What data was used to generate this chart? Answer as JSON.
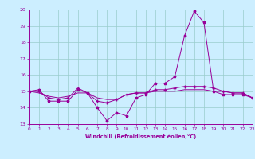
{
  "x": [
    0,
    1,
    2,
    3,
    4,
    5,
    6,
    7,
    8,
    9,
    10,
    11,
    12,
    13,
    14,
    15,
    16,
    17,
    18,
    19,
    20,
    21,
    22,
    23
  ],
  "line1": [
    15.0,
    15.1,
    14.4,
    14.4,
    14.4,
    15.1,
    14.9,
    14.0,
    13.2,
    13.7,
    13.5,
    14.6,
    14.8,
    15.5,
    15.5,
    15.9,
    18.4,
    19.9,
    19.2,
    15.0,
    14.8,
    14.8,
    14.8,
    14.6
  ],
  "line2": [
    15.0,
    15.0,
    14.6,
    14.5,
    14.6,
    15.2,
    14.9,
    14.4,
    14.3,
    14.5,
    14.8,
    14.9,
    14.9,
    15.1,
    15.1,
    15.2,
    15.3,
    15.3,
    15.3,
    15.2,
    15.0,
    14.9,
    14.9,
    14.6
  ],
  "line3": [
    15.0,
    14.9,
    14.7,
    14.6,
    14.7,
    14.9,
    14.9,
    14.6,
    14.5,
    14.5,
    14.8,
    14.9,
    14.9,
    15.0,
    15.0,
    15.0,
    15.1,
    15.1,
    15.1,
    15.0,
    15.0,
    14.9,
    14.9,
    14.6
  ],
  "line_color": "#990099",
  "bg_color": "#cceeff",
  "grid_color": "#99cccc",
  "xlabel": "Windchill (Refroidissement éolien,°C)",
  "ylim": [
    13,
    20
  ],
  "xlim": [
    0,
    23
  ],
  "yticks": [
    13,
    14,
    15,
    16,
    17,
    18,
    19,
    20
  ],
  "xticks": [
    0,
    1,
    2,
    3,
    4,
    5,
    6,
    7,
    8,
    9,
    10,
    11,
    12,
    13,
    14,
    15,
    16,
    17,
    18,
    19,
    20,
    21,
    22,
    23
  ]
}
